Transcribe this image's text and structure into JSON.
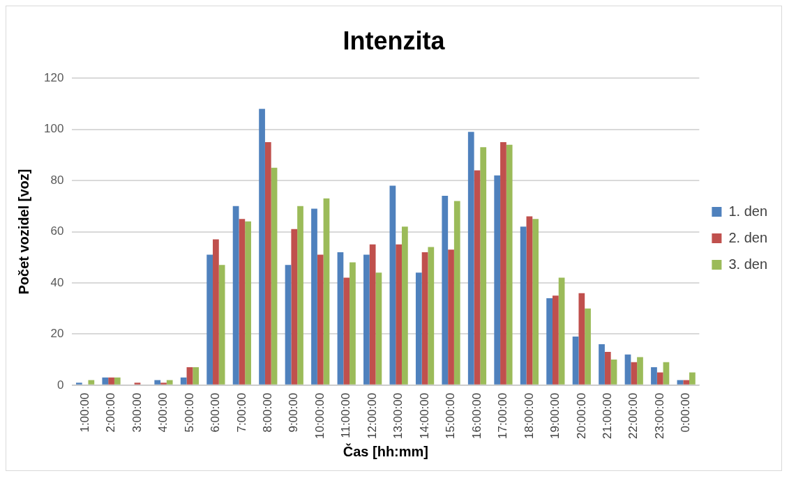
{
  "chart_data": {
    "type": "bar",
    "title": "Intenzita",
    "xlabel": "Čas [hh:mm]",
    "ylabel": "Počet vozidel [voz]",
    "categories": [
      "1:00:00",
      "2:00:00",
      "3:00:00",
      "4:00:00",
      "5:00:00",
      "6:00:00",
      "7:00:00",
      "8:00:00",
      "9:00:00",
      "10:00:00",
      "11:00:00",
      "12:00:00",
      "13:00:00",
      "14:00:00",
      "15:00:00",
      "16:00:00",
      "17:00:00",
      "18:00:00",
      "19:00:00",
      "20:00:00",
      "21:00:00",
      "22:00:00",
      "23:00:00",
      "0:00:00"
    ],
    "series": [
      {
        "name": "1. den",
        "color": "#4f81bd",
        "values": [
          1,
          3,
          0,
          2,
          3,
          51,
          70,
          108,
          47,
          69,
          52,
          51,
          78,
          44,
          74,
          99,
          82,
          62,
          34,
          19,
          16,
          12,
          7,
          2
        ]
      },
      {
        "name": "2. den",
        "color": "#c0504d",
        "values": [
          0,
          3,
          1,
          1,
          7,
          57,
          65,
          95,
          61,
          51,
          42,
          55,
          55,
          52,
          53,
          84,
          95,
          66,
          35,
          36,
          13,
          9,
          5,
          2
        ]
      },
      {
        "name": "3. den",
        "color": "#9bbb59",
        "values": [
          2,
          3,
          0,
          2,
          7,
          47,
          64,
          85,
          70,
          73,
          48,
          44,
          62,
          54,
          72,
          93,
          94,
          65,
          42,
          30,
          10,
          11,
          9,
          5
        ]
      }
    ],
    "ylim": [
      0,
      120
    ],
    "yticks": [
      0,
      20,
      40,
      60,
      80,
      100,
      120
    ],
    "grid": "y",
    "legend": "right"
  }
}
